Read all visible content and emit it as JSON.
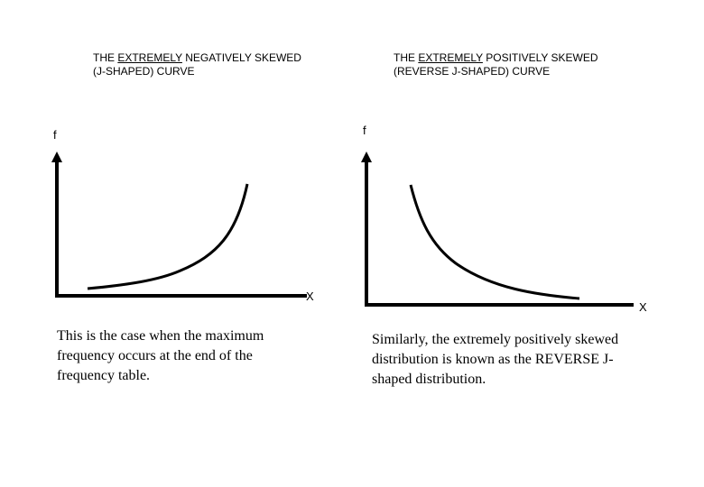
{
  "left_panel": {
    "title_prefix": "THE ",
    "title_emphasis": "EXTREMELY",
    "title_rest": " NEGATIVELY SKEWED",
    "title_line2": "(J-SHAPED) CURVE",
    "y_axis_label": "f",
    "x_axis_label": "X",
    "caption_line1": "This is the case when the maximum",
    "caption_line2": "frequency occurs at the end of the",
    "caption_line3": "frequency table."
  },
  "right_panel": {
    "title_prefix": "THE ",
    "title_emphasis": "EXTREMELY",
    "title_rest": " POSITIVELY SKEWED",
    "title_line2": "(REVERSE J-SHAPED) CURVE",
    "y_axis_label": "f",
    "x_axis_label": "X",
    "caption_line1": "Similarly, the extremely positively skewed",
    "caption_line2": "distribution is known as the REVERSE J-",
    "caption_line3": "shaped distribution."
  },
  "colors": {
    "ink": "#000000",
    "background": "#ffffff"
  }
}
